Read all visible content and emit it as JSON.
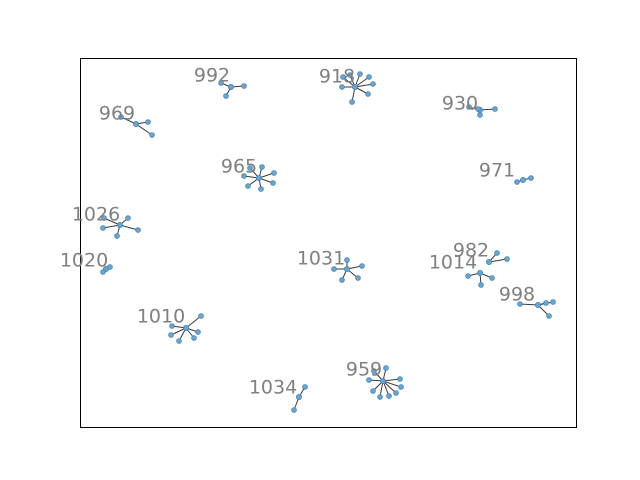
{
  "graph": {
    "components": [
      {
        "label": "992"
      },
      {
        "label": "918"
      },
      {
        "label": "930"
      },
      {
        "label": "969"
      },
      {
        "label": "971"
      },
      {
        "label": "965"
      },
      {
        "label": "1026"
      },
      {
        "label": "1020"
      },
      {
        "label": "982"
      },
      {
        "label": "1014"
      },
      {
        "label": "1031"
      },
      {
        "label": "998"
      },
      {
        "label": "1010"
      },
      {
        "label": "959"
      },
      {
        "label": "1034"
      }
    ],
    "colors": {
      "node": "#6aa5cd",
      "edge": "#3a3a3a",
      "label": "#808080",
      "frame": "#000000"
    }
  }
}
